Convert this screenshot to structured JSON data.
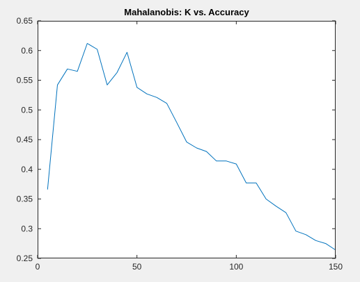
{
  "chart_data": {
    "type": "line",
    "title": "Mahalanobis: K vs. Accuracy",
    "xlabel": "",
    "ylabel": "",
    "xlim": [
      0,
      150
    ],
    "ylim": [
      0.25,
      0.65
    ],
    "xticks": [
      "0",
      "50",
      "100",
      "150"
    ],
    "yticks": [
      "0.25",
      "0.3",
      "0.35",
      "0.4",
      "0.45",
      "0.5",
      "0.55",
      "0.6",
      "0.65"
    ],
    "grid": false,
    "series": [
      {
        "color": "#0072bd",
        "x": [
          5,
          10,
          15,
          20,
          25,
          30,
          35,
          40,
          45,
          50,
          55,
          60,
          65,
          70,
          75,
          80,
          85,
          90,
          95,
          100,
          105,
          110,
          115,
          120,
          125,
          130,
          135,
          140,
          145,
          150
        ],
        "y": [
          0.366,
          0.542,
          0.569,
          0.565,
          0.612,
          0.602,
          0.542,
          0.563,
          0.597,
          0.538,
          0.527,
          0.521,
          0.511,
          0.479,
          0.446,
          0.436,
          0.43,
          0.414,
          0.414,
          0.409,
          0.377,
          0.377,
          0.35,
          0.338,
          0.327,
          0.296,
          0.29,
          0.28,
          0.275,
          0.264
        ]
      }
    ]
  },
  "colors": {
    "figure_background": "#f0f0f0",
    "axes_background": "#ffffff",
    "axes_color": "#262626",
    "line": "#0072bd"
  }
}
